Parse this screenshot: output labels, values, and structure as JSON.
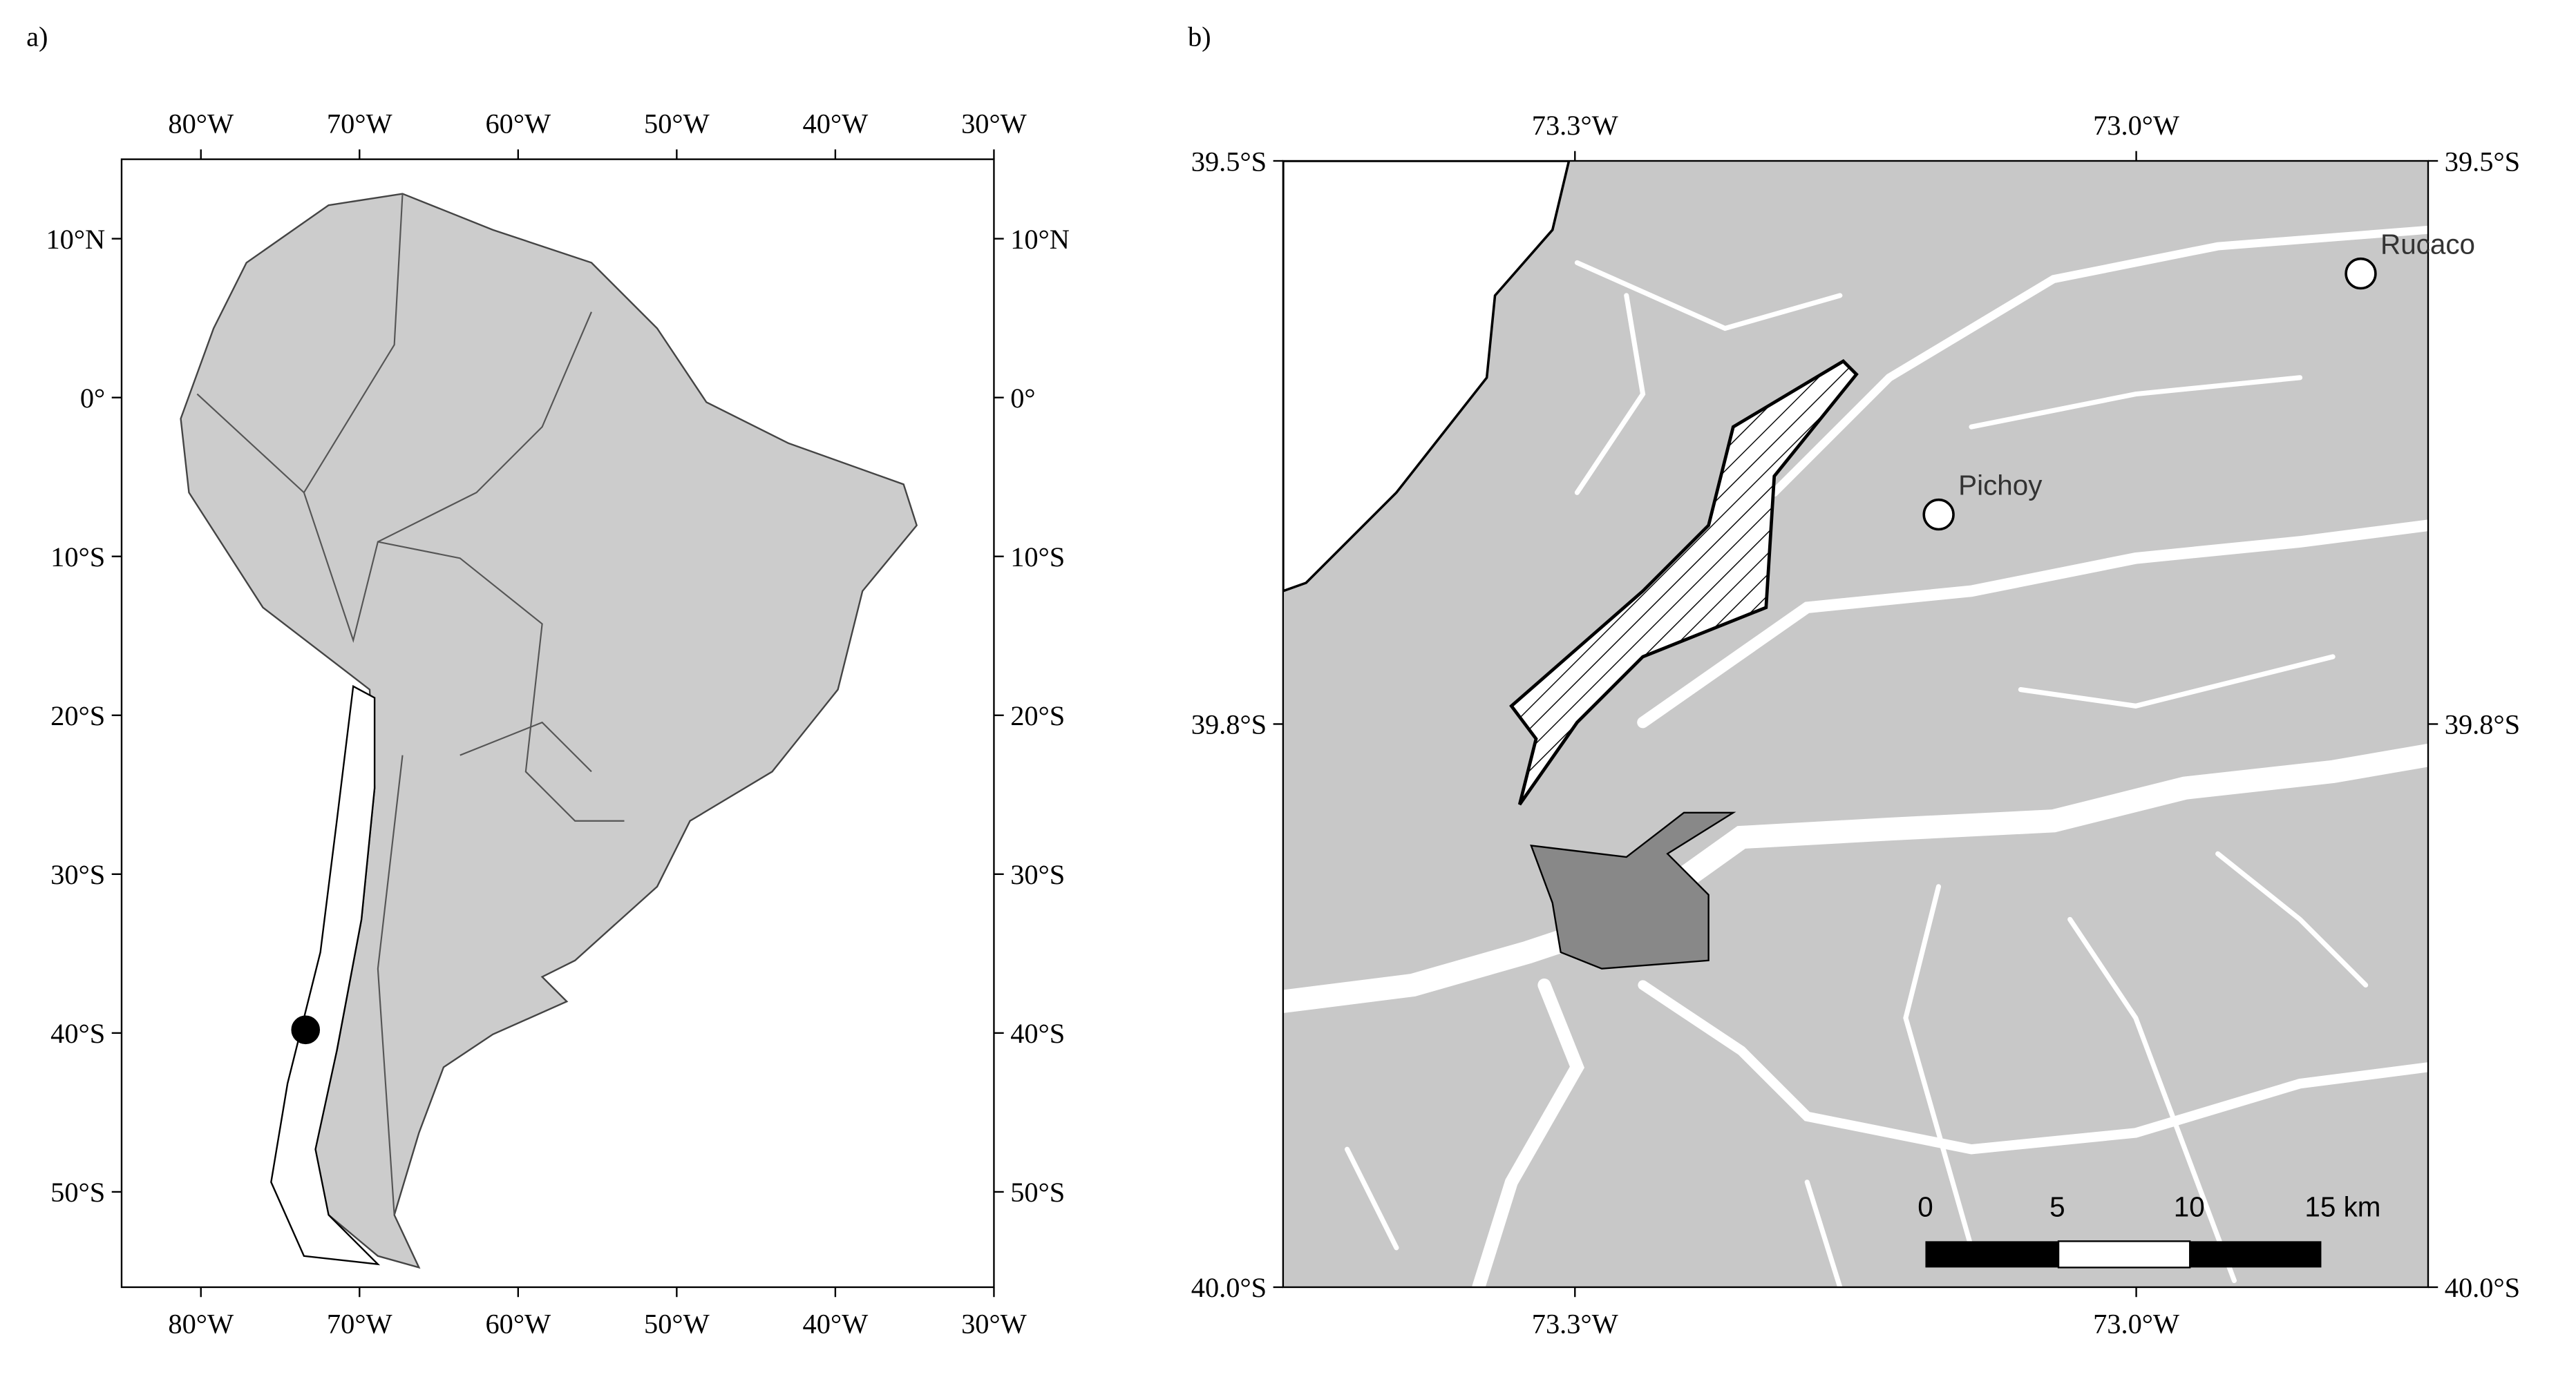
{
  "maps": [
    {
      "panel_label": "a)",
      "xlim": [
        -85,
        -30
      ],
      "ylim": [
        -56,
        15
      ],
      "xticks": [
        {
          "value": -80,
          "label": "80°W"
        },
        {
          "value": -70,
          "label": "70°W"
        },
        {
          "value": -60,
          "label": "60°W"
        },
        {
          "value": -50,
          "label": "50°W"
        },
        {
          "value": -40,
          "label": "40°W"
        },
        {
          "value": -30,
          "label": "30°W"
        }
      ],
      "yticks": [
        {
          "value": 10,
          "label": "10°N"
        },
        {
          "value": 0,
          "label": "0°"
        },
        {
          "value": -10,
          "label": "10°S"
        },
        {
          "value": -20,
          "label": "20°S"
        },
        {
          "value": -30,
          "label": "30°S"
        },
        {
          "value": -40,
          "label": "40°S"
        },
        {
          "value": -50,
          "label": "50°S"
        }
      ],
      "points": [
        {
          "lon": -73.4,
          "lat": -39.8,
          "color": "#000000"
        }
      ]
    },
    {
      "panel_label": "b)",
      "xlim": [
        -73.38,
        -72.87
      ],
      "ylim": [
        -40.0,
        -39.5
      ],
      "xticks": [
        {
          "value": -73.25,
          "label": "73.3°W"
        },
        {
          "value": -73.0,
          "label": "73.0°W"
        }
      ],
      "yticks": [
        {
          "value": -39.5,
          "label": "39.5°S"
        },
        {
          "value": -39.75,
          "label": "39.8°S"
        },
        {
          "value": -40.0,
          "label": "40.0°S"
        }
      ],
      "points": [
        {
          "name": "Rucaco",
          "lon": -72.9,
          "lat": -39.55,
          "color": "#ffffff"
        },
        {
          "name": "Pichoy",
          "lon": -73.088,
          "lat": -39.657,
          "color": "#ffffff"
        }
      ],
      "scale_bar": [
        "0",
        "5",
        "10",
        "15 km"
      ]
    }
  ]
}
